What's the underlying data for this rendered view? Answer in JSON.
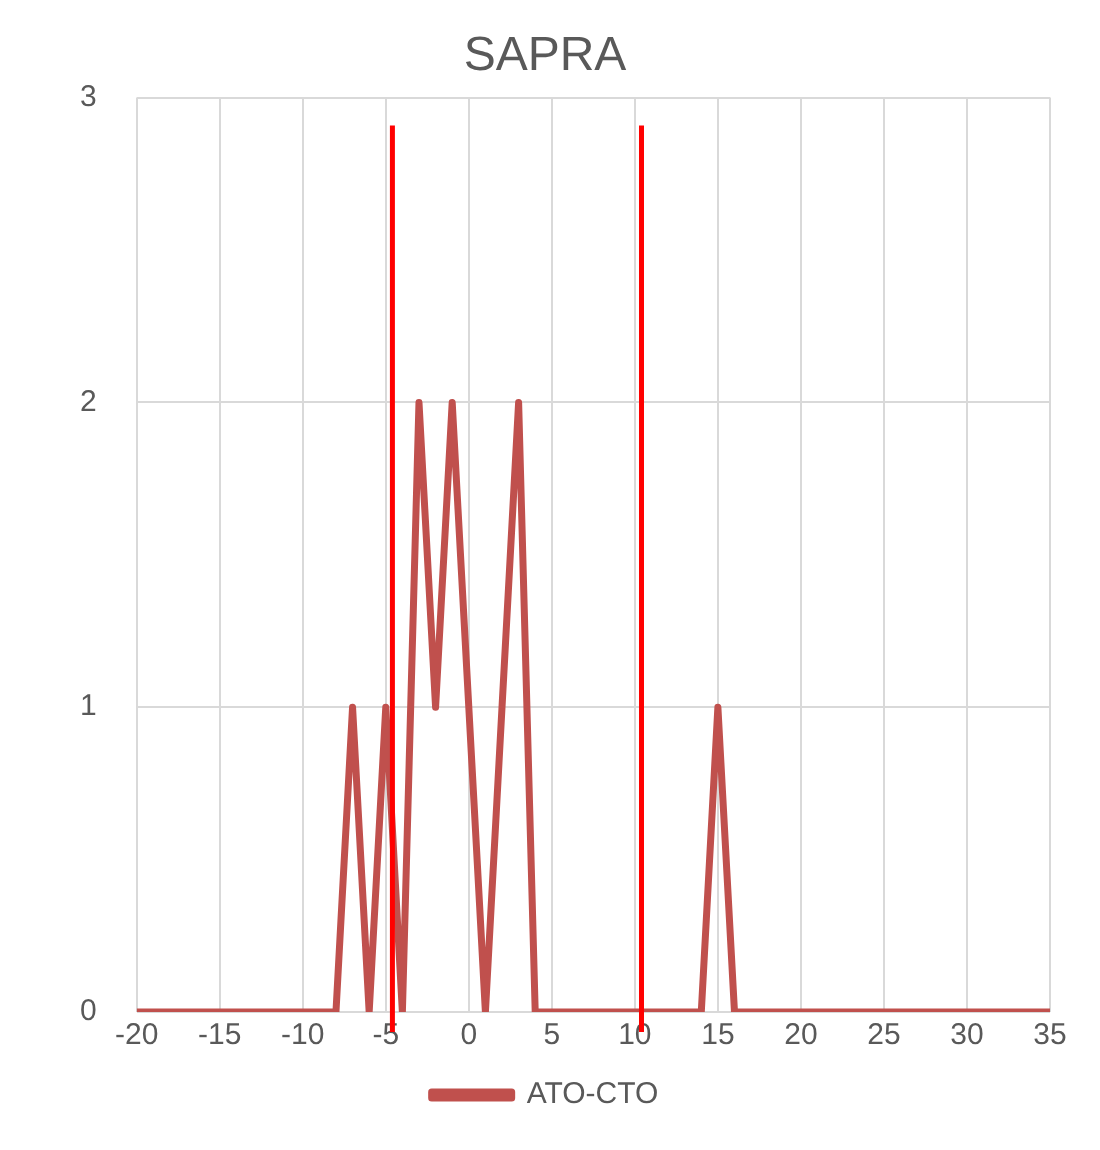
{
  "chart_data": {
    "type": "line",
    "title": "SAPRA",
    "x": [
      -20,
      -19,
      -18,
      -17,
      -16,
      -15,
      -14,
      -13,
      -12,
      -11,
      -10,
      -9,
      -8,
      -7,
      -6,
      -5,
      -4,
      -3,
      -2,
      -1,
      0,
      1,
      2,
      3,
      4,
      5,
      6,
      7,
      8,
      9,
      10,
      11,
      12,
      13,
      14,
      15,
      16,
      17,
      18,
      19,
      20,
      21,
      22,
      23,
      24,
      25,
      26,
      27,
      28,
      29,
      30,
      31,
      32,
      33,
      34,
      35
    ],
    "series": [
      {
        "name": "ATO-CTO",
        "color": "#c0504d",
        "values": [
          0,
          0,
          0,
          0,
          0,
          0,
          0,
          0,
          0,
          0,
          0,
          0,
          0,
          1,
          0,
          1,
          0,
          2,
          1,
          2,
          1,
          0,
          1,
          2,
          0,
          0,
          0,
          0,
          0,
          0,
          0,
          0,
          0,
          0,
          0,
          1,
          0,
          0,
          0,
          0,
          0,
          0,
          0,
          0,
          0,
          0,
          0,
          0,
          0,
          0,
          0,
          0,
          0,
          0,
          0,
          0
        ]
      }
    ],
    "xlim": [
      -20,
      35
    ],
    "xticks": [
      -20,
      -15,
      -10,
      -5,
      0,
      5,
      10,
      15,
      20,
      25,
      30,
      35
    ],
    "ylim": [
      0,
      3
    ],
    "yticks": [
      0,
      1,
      2,
      3
    ],
    "ref_lines": [
      {
        "axis": "x",
        "value": -4.6,
        "color": "#ff0000"
      },
      {
        "axis": "x",
        "value": 10.4,
        "color": "#ff0000"
      }
    ],
    "grid": true,
    "legend": "bottom",
    "marker": "none",
    "line_style": "solid"
  }
}
